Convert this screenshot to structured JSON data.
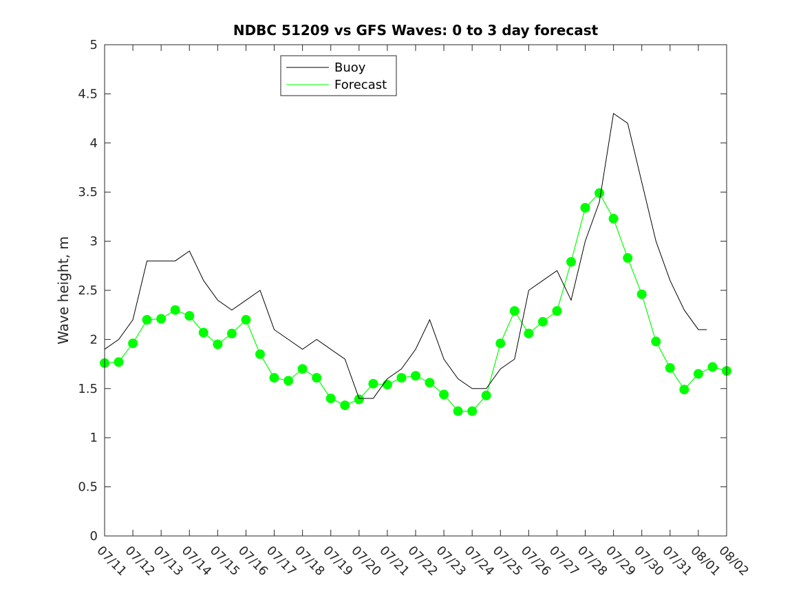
{
  "chart_data": {
    "type": "line",
    "title": "NDBC 51209 vs GFS Waves: 0 to 3 day forecast",
    "xlabel": "",
    "ylabel": "Wave height, m",
    "xlim": [
      "07/11",
      "08/02"
    ],
    "ylim": [
      0,
      5
    ],
    "x_ticks": [
      "07/11",
      "07/12",
      "07/13",
      "07/14",
      "07/15",
      "07/16",
      "07/17",
      "07/18",
      "07/19",
      "07/20",
      "07/21",
      "07/22",
      "07/23",
      "07/24",
      "07/25",
      "07/26",
      "07/27",
      "07/28",
      "07/29",
      "07/30",
      "07/31",
      "08/01",
      "08/02"
    ],
    "y_ticks": [
      "0",
      "0.5",
      "1",
      "1.5",
      "2",
      "2.5",
      "3",
      "3.5",
      "4",
      "4.5",
      "5"
    ],
    "grid": false,
    "legend": {
      "position": "top-center",
      "entries": [
        "Buoy",
        "Forecast"
      ]
    },
    "colors": {
      "buoy": "#000000",
      "forecast": "#00ff00"
    },
    "series": [
      {
        "name": "Buoy",
        "x": [
          "07/11",
          "07/11.5",
          "07/12",
          "07/12.5",
          "07/13",
          "07/13.5",
          "07/14",
          "07/14.5",
          "07/15",
          "07/15.5",
          "07/16",
          "07/16.5",
          "07/17",
          "07/17.5",
          "07/18",
          "07/18.5",
          "07/19",
          "07/19.5",
          "07/20",
          "07/20.5",
          "07/21",
          "07/21.5",
          "07/22",
          "07/22.5",
          "07/23",
          "07/23.5",
          "07/24",
          "07/24.5",
          "07/25",
          "07/25.5",
          "07/26",
          "07/26.5",
          "07/27",
          "07/27.5",
          "07/28",
          "07/28.5",
          "07/29",
          "07/29.5",
          "07/30",
          "07/30.5",
          "07/31",
          "07/31.5",
          "08/01",
          "08/01.3"
        ],
        "values": [
          1.9,
          2.0,
          2.2,
          2.8,
          2.8,
          2.8,
          2.9,
          2.6,
          2.4,
          2.3,
          2.4,
          2.5,
          2.1,
          2.0,
          1.9,
          2.0,
          1.9,
          1.8,
          1.4,
          1.4,
          1.6,
          1.7,
          1.9,
          2.2,
          1.8,
          1.6,
          1.5,
          1.5,
          1.7,
          1.8,
          2.5,
          2.6,
          2.7,
          2.4,
          3.0,
          3.4,
          4.3,
          4.2,
          3.6,
          3.0,
          2.6,
          2.3,
          2.1,
          2.1
        ]
      },
      {
        "name": "Forecast",
        "x": [
          "07/11",
          "07/11.5",
          "07/12",
          "07/12.5",
          "07/13",
          "07/13.5",
          "07/14",
          "07/14.5",
          "07/15",
          "07/15.5",
          "07/16",
          "07/16.5",
          "07/17",
          "07/17.5",
          "07/18",
          "07/18.5",
          "07/19",
          "07/19.5",
          "07/20",
          "07/20.5",
          "07/21",
          "07/21.5",
          "07/22",
          "07/22.5",
          "07/23",
          "07/23.5",
          "07/24",
          "07/24.5",
          "07/25",
          "07/25.5",
          "07/26",
          "07/26.5",
          "07/27",
          "07/27.5",
          "07/28",
          "07/28.5",
          "07/29",
          "07/29.5",
          "07/30",
          "07/30.5",
          "07/31",
          "07/31.5",
          "08/01",
          "08/01.5",
          "08/02"
        ],
        "values": [
          1.76,
          1.77,
          1.96,
          2.2,
          2.21,
          2.3,
          2.24,
          2.07,
          1.95,
          2.06,
          2.2,
          1.85,
          1.61,
          1.58,
          1.7,
          1.61,
          1.4,
          1.33,
          1.39,
          1.55,
          1.54,
          1.61,
          1.63,
          1.56,
          1.44,
          1.27,
          1.27,
          1.43,
          1.96,
          2.29,
          2.06,
          2.18,
          2.29,
          2.79,
          3.34,
          3.49,
          3.23,
          2.83,
          2.46,
          1.98,
          1.71,
          1.49,
          1.65,
          1.72,
          1.68
        ]
      }
    ]
  }
}
